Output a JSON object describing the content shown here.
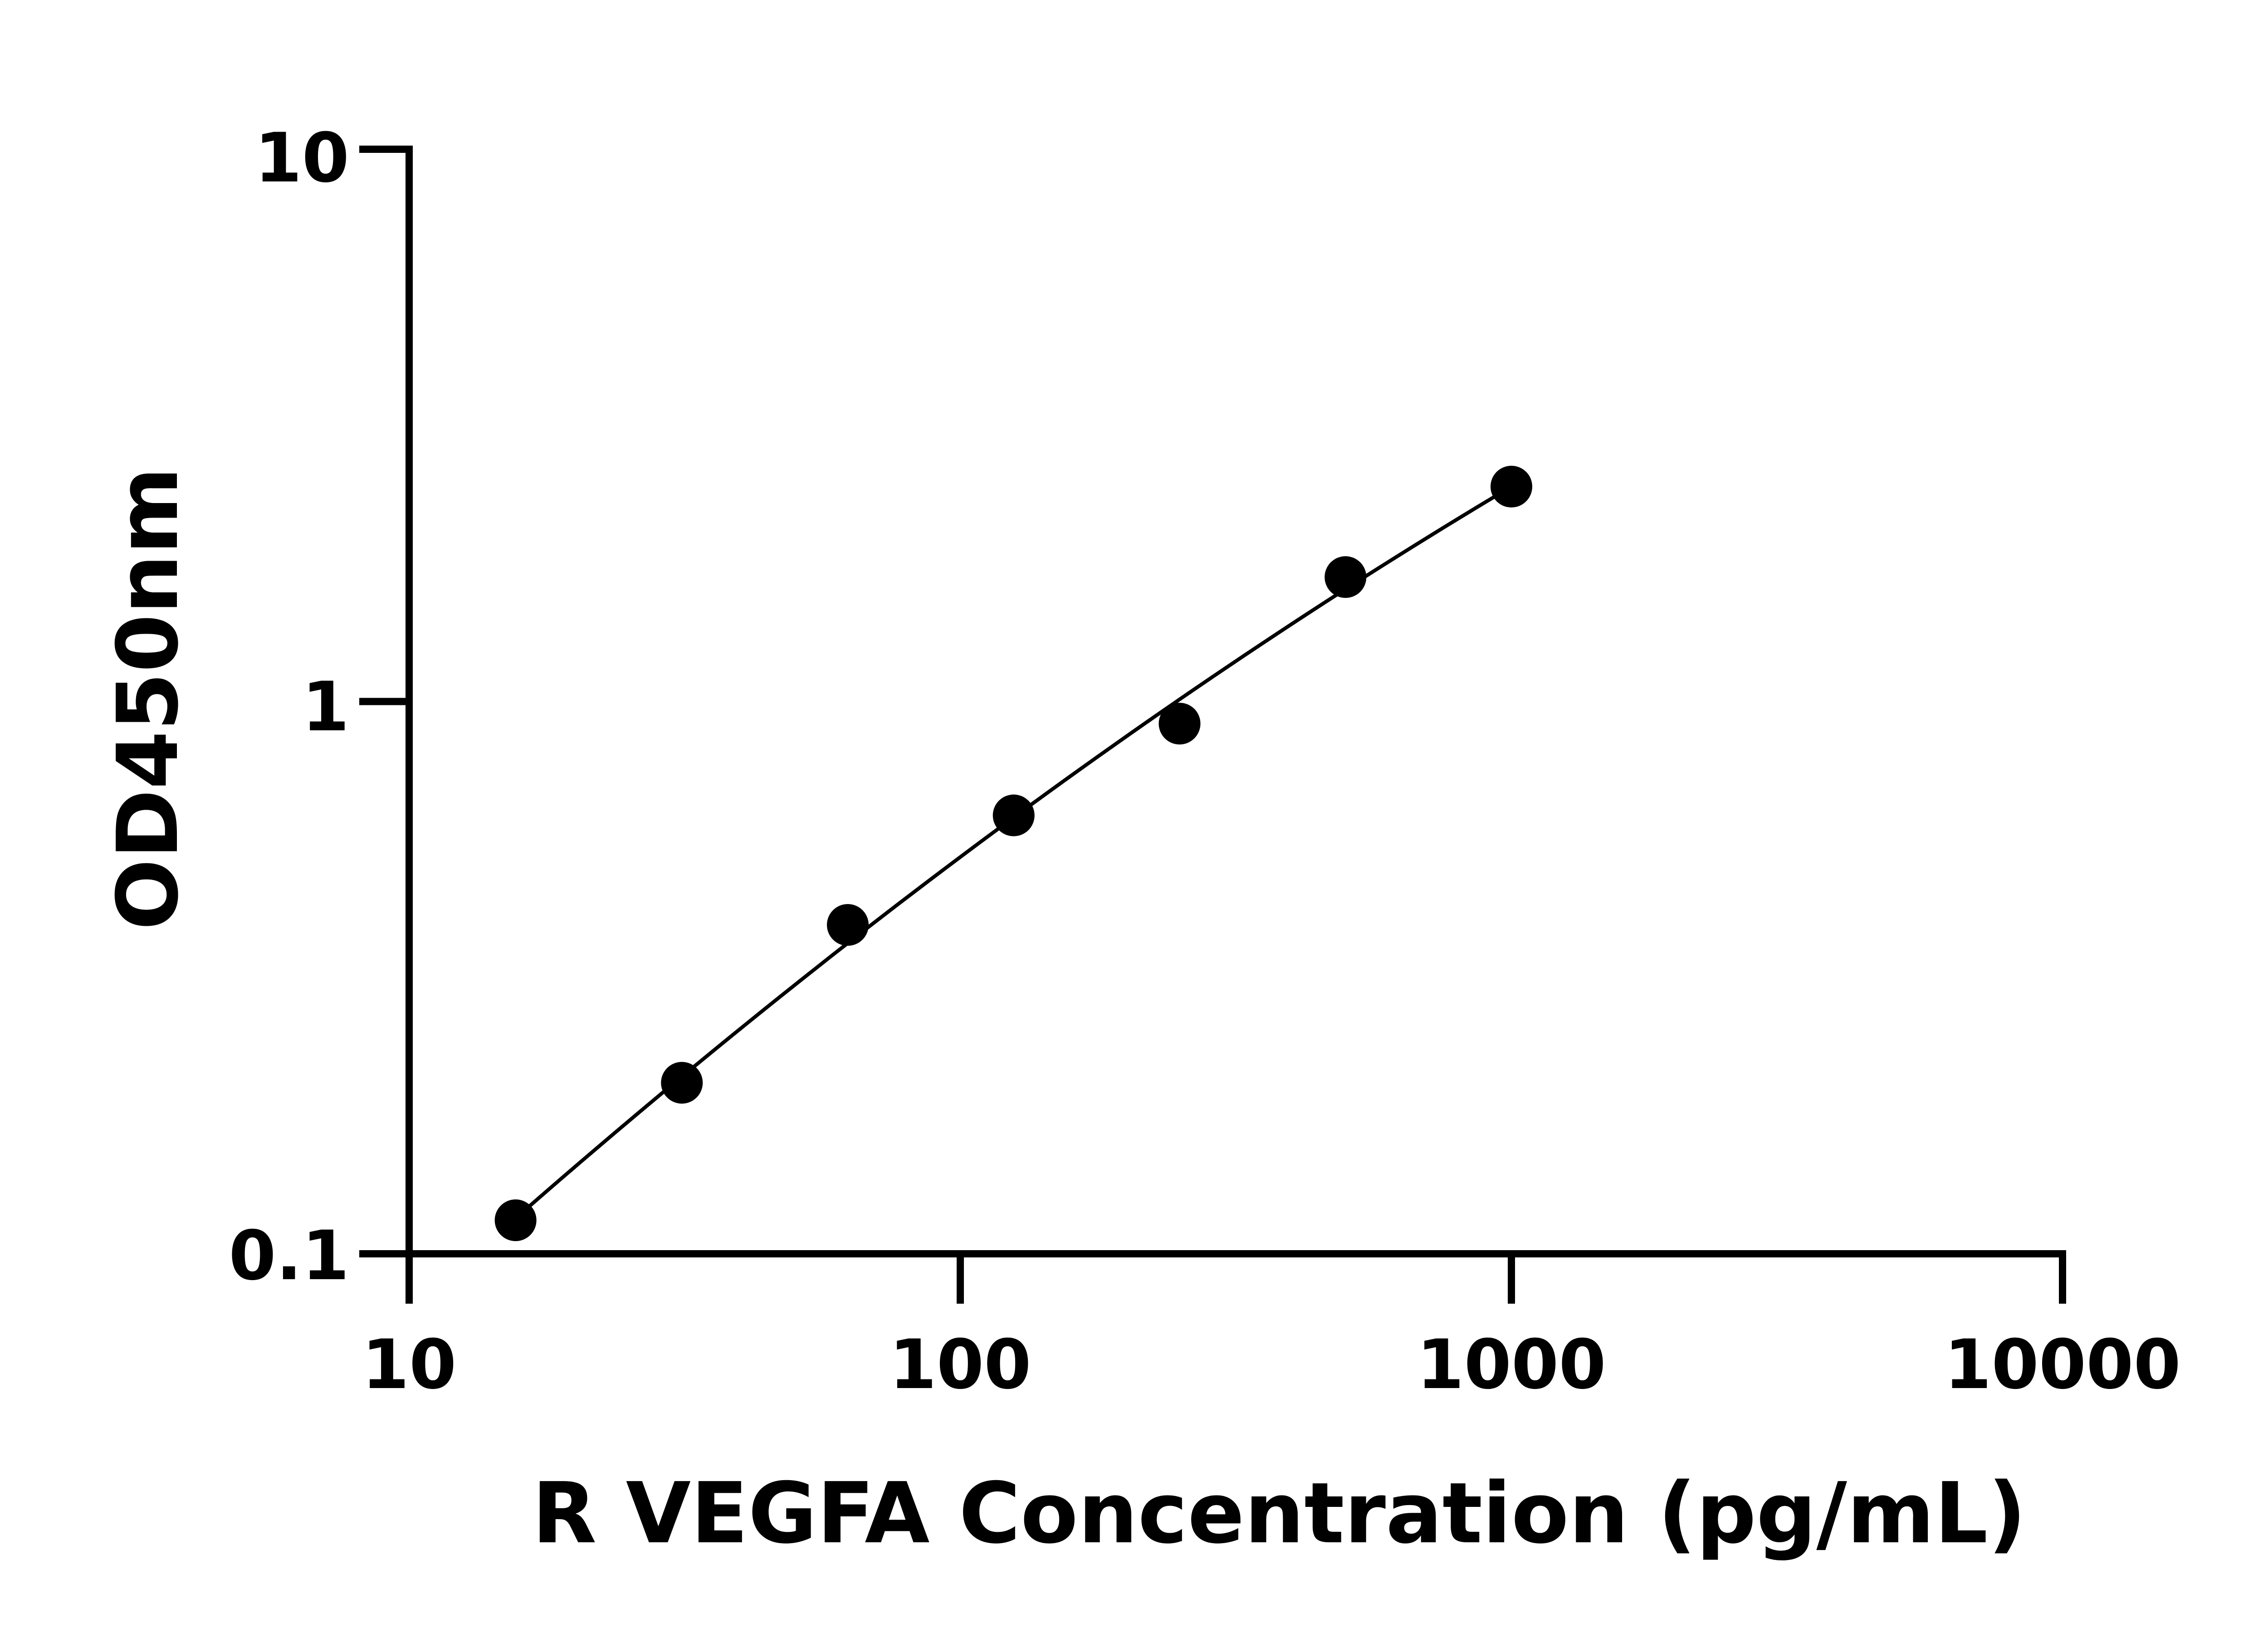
{
  "chart_data": {
    "type": "scatter",
    "title": "",
    "xlabel": "R VEGFA Concentration (pg/mL)",
    "ylabel": "OD450nm",
    "x_scale": "log",
    "y_scale": "log",
    "xlim": [
      10,
      10000
    ],
    "ylim": [
      0.1,
      10
    ],
    "x_ticks": [
      "10",
      "100",
      "1000",
      "10000"
    ],
    "y_ticks": [
      "0.1",
      "1",
      "10"
    ],
    "grid": false,
    "legend": "none",
    "fit_line": true,
    "color": "#000000",
    "series": [
      {
        "x": [
          15.6,
          31.25,
          62.5,
          125,
          250,
          500,
          1000
        ],
        "y": [
          0.115,
          0.204,
          0.394,
          0.622,
          0.912,
          1.68,
          2.45
        ]
      }
    ]
  }
}
